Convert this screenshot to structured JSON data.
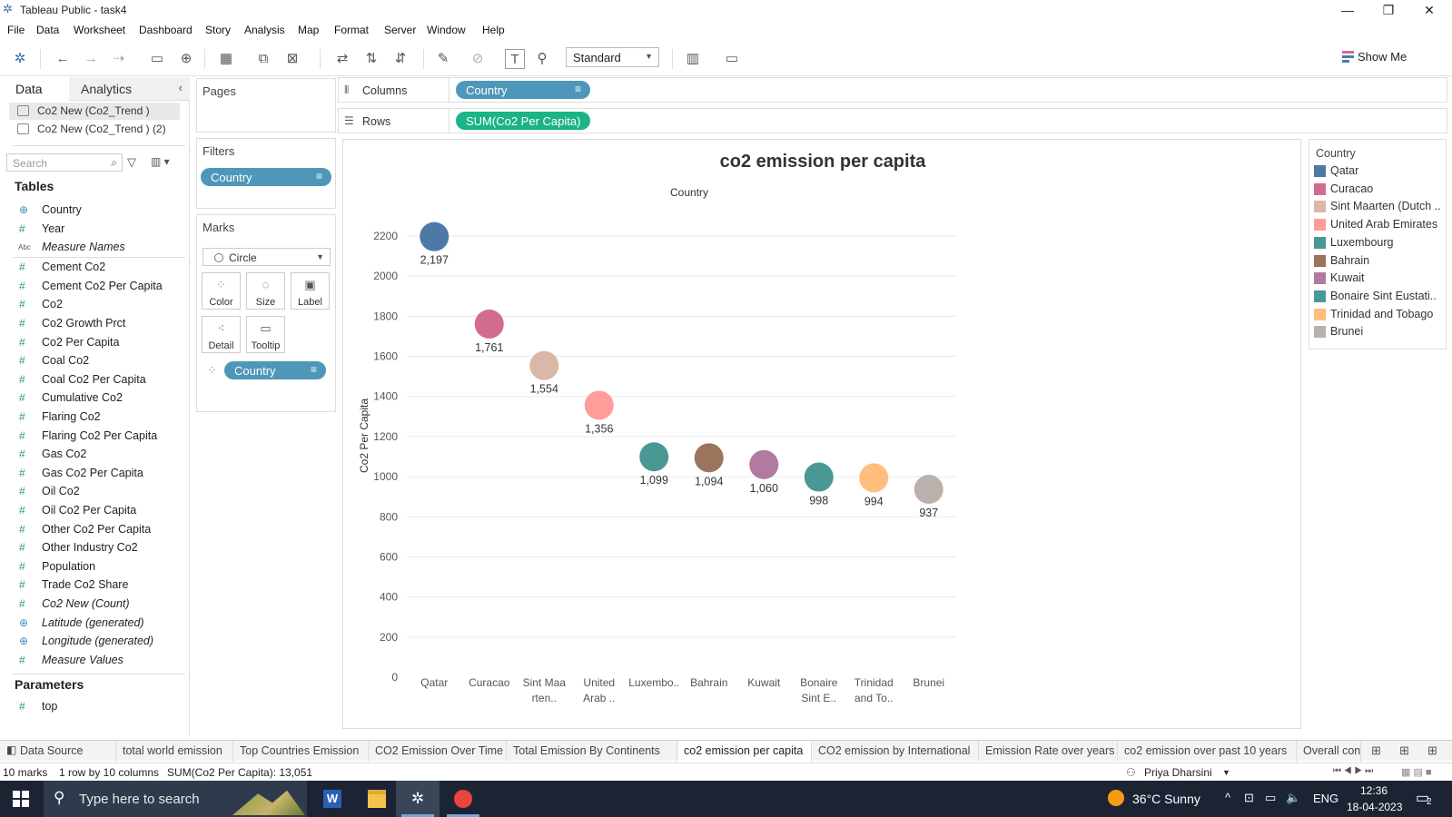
{
  "window": {
    "title": "Tableau Public - task4"
  },
  "menu": [
    "File",
    "Data",
    "Worksheet",
    "Dashboard",
    "Story",
    "Analysis",
    "Map",
    "Format",
    "Server",
    "Window",
    "Help"
  ],
  "toolbar": {
    "fit_mode": "Standard",
    "show_me": "Show Me"
  },
  "left_panel": {
    "tab_data": "Data",
    "tab_analytics": "Analytics",
    "datasources": [
      "Co2 New (Co2_Trend )",
      "Co2 New (Co2_Trend ) (2)"
    ],
    "search_placeholder": "Search",
    "tables_heading": "Tables",
    "fields": [
      {
        "name": "Country",
        "type": "geo"
      },
      {
        "name": "Year",
        "type": "num"
      },
      {
        "name": "Measure Names",
        "type": "abc"
      },
      {
        "name": "Cement Co2",
        "type": "num"
      },
      {
        "name": "Cement Co2 Per Capita",
        "type": "num"
      },
      {
        "name": "Co2",
        "type": "num"
      },
      {
        "name": "Co2 Growth Prct",
        "type": "num"
      },
      {
        "name": "Co2 Per Capita",
        "type": "num"
      },
      {
        "name": "Coal Co2",
        "type": "num"
      },
      {
        "name": "Coal Co2 Per Capita",
        "type": "num"
      },
      {
        "name": "Cumulative Co2",
        "type": "num"
      },
      {
        "name": "Flaring Co2",
        "type": "num"
      },
      {
        "name": "Flaring Co2 Per Capita",
        "type": "num"
      },
      {
        "name": "Gas Co2",
        "type": "num"
      },
      {
        "name": "Gas Co2 Per Capita",
        "type": "num"
      },
      {
        "name": "Oil Co2",
        "type": "num"
      },
      {
        "name": "Oil Co2 Per Capita",
        "type": "num"
      },
      {
        "name": "Other Co2 Per Capita",
        "type": "num"
      },
      {
        "name": "Other Industry Co2",
        "type": "num"
      },
      {
        "name": "Population",
        "type": "num"
      },
      {
        "name": "Trade Co2 Share",
        "type": "num"
      },
      {
        "name": "Co2 New (Count)",
        "type": "num-it"
      },
      {
        "name": "Latitude (generated)",
        "type": "geo-it"
      },
      {
        "name": "Longitude (generated)",
        "type": "geo-it"
      },
      {
        "name": "Measure Values",
        "type": "num-it"
      }
    ],
    "parameters_heading": "Parameters",
    "parameters": [
      "top"
    ]
  },
  "shelves": {
    "pages": "Pages",
    "filters": "Filters",
    "filter_pill": "Country",
    "marks": "Marks",
    "mark_type": "Circle",
    "mark_buttons": [
      "Color",
      "Size",
      "Label",
      "Detail",
      "Tooltip"
    ],
    "marks_pill": "Country",
    "columns_label": "Columns",
    "columns_pill": "Country",
    "rows_label": "Rows",
    "rows_pill": "SUM(Co2 Per Capita)"
  },
  "chart_data": {
    "type": "scatter",
    "title": "co2 emission per capita",
    "column_header": "Country",
    "ylabel": "Co2 Per Capita",
    "ylim": [
      0,
      2200
    ],
    "yticks": [
      0,
      200,
      400,
      600,
      800,
      1000,
      1200,
      1400,
      1600,
      1800,
      2000,
      2200
    ],
    "categories": [
      "Qatar",
      "Curacao",
      "Sint Maarten (Dutch part)",
      "United Arab Emirates",
      "Luxembourg",
      "Bahrain",
      "Kuwait",
      "Bonaire Sint Eustatius and Saba",
      "Trinidad and Tobago",
      "Brunei"
    ],
    "tick_labels": [
      [
        "Qatar"
      ],
      [
        "Curacao"
      ],
      [
        "Sint Maa",
        "rten.."
      ],
      [
        "United",
        "Arab .."
      ],
      [
        "Luxembo.."
      ],
      [
        "Bahrain"
      ],
      [
        "Kuwait"
      ],
      [
        "Bonaire",
        "Sint E.."
      ],
      [
        "Trinidad",
        "and To.."
      ],
      [
        "Brunei"
      ]
    ],
    "values": [
      2197,
      1761,
      1554,
      1356,
      1099,
      1094,
      1060,
      998,
      994,
      937
    ],
    "data_labels": [
      "2,197",
      "1,761",
      "1,554",
      "1,356",
      "1,099",
      "1,094",
      "1,060",
      "998",
      "994",
      "937"
    ],
    "colors": [
      "#4e79a7",
      "#d16b8f",
      "#d9b8a7",
      "#ff9d9a",
      "#499894",
      "#9c735c",
      "#b07aa1",
      "#499894",
      "#ffbe7d",
      "#bab0ac"
    ],
    "grid": true
  },
  "legend": {
    "title": "Country",
    "items": [
      {
        "label": "Qatar",
        "color": "#4e79a7"
      },
      {
        "label": "Curacao",
        "color": "#d16b8f"
      },
      {
        "label": "Sint Maarten (Dutch ..",
        "color": "#d9b8a7"
      },
      {
        "label": "United Arab Emirates",
        "color": "#ff9d9a"
      },
      {
        "label": "Luxembourg",
        "color": "#499894"
      },
      {
        "label": "Bahrain",
        "color": "#9c735c"
      },
      {
        "label": "Kuwait",
        "color": "#b07aa1"
      },
      {
        "label": "Bonaire Sint Eustati..",
        "color": "#499894"
      },
      {
        "label": "Trinidad and Tobago",
        "color": "#ffbe7d"
      },
      {
        "label": "Brunei",
        "color": "#bab0ac"
      }
    ]
  },
  "sheet_tabs": {
    "data_source": "Data Source",
    "tabs": [
      "total world emission",
      "Top Countries Emission",
      "CO2 Emission Over Time",
      "Total Emission By Continents",
      "co2 emission per capita",
      "CO2 emission by International",
      "Emission Rate over years",
      "co2 emission over past 10 years",
      "Overall cont"
    ],
    "active": "co2 emission per capita"
  },
  "status": {
    "marks": "10 marks",
    "rows_cols": "1 row by 10 columns",
    "sum": "SUM(Co2 Per Capita): 13,051",
    "user": "Priya Dharsini"
  },
  "taskbar": {
    "search_placeholder": "Type here to search",
    "weather": "36°C  Sunny",
    "lang": "ENG",
    "time": "12:36",
    "date": "18-04-2023",
    "notifications": "2"
  }
}
